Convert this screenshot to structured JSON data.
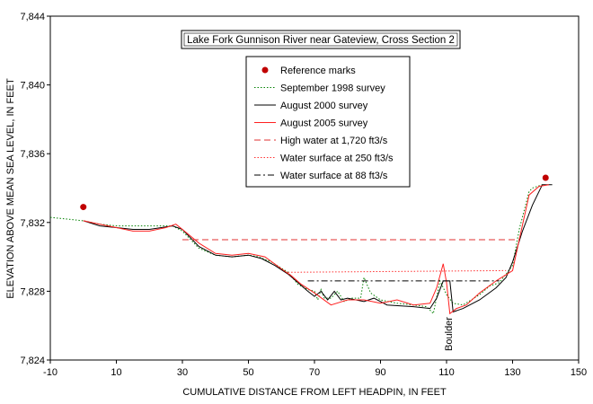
{
  "chart_data": {
    "type": "line",
    "title": "Lake Fork Gunnison River near Gateview, Cross Section 2",
    "xlabel": "CUMULATIVE DISTANCE FROM LEFT HEADPIN, IN FEET",
    "ylabel": "ELEVATION ABOVE MEAN SEA LEVEL, IN FEET",
    "xlim": [
      -10,
      150
    ],
    "ylim": [
      7824,
      7844
    ],
    "x_ticks": [
      -10,
      10,
      30,
      50,
      70,
      90,
      110,
      130,
      150
    ],
    "y_ticks": [
      7824,
      7828,
      7832,
      7836,
      7840,
      7844
    ],
    "y_tick_labels": [
      "7,824",
      "7,828",
      "7,832",
      "7,836",
      "7,840",
      "7,844"
    ],
    "legend_position": "inside-top-center",
    "annotation": "Boulder",
    "series": [
      {
        "name": "Reference marks",
        "kind": "marker",
        "color": "#c00000",
        "points": [
          [
            0,
            7832.9
          ],
          [
            140,
            7834.6
          ]
        ]
      },
      {
        "name": "September 1998 survey",
        "kind": "line",
        "style": "dotted",
        "color": "#008000",
        "points": [
          [
            -10,
            7832.3
          ],
          [
            0,
            7832.1
          ],
          [
            5,
            7831.9
          ],
          [
            10,
            7831.8
          ],
          [
            27,
            7831.8
          ],
          [
            30,
            7831.5
          ],
          [
            35,
            7830.5
          ],
          [
            40,
            7830.1
          ],
          [
            45,
            7830.0
          ],
          [
            50,
            7830.1
          ],
          [
            53,
            7830.0
          ],
          [
            57,
            7829.7
          ],
          [
            62,
            7829.1
          ],
          [
            65,
            7828.4
          ],
          [
            68,
            7828.1
          ],
          [
            70,
            7828.0
          ],
          [
            71,
            7827.5
          ],
          [
            72,
            7828.1
          ],
          [
            73,
            7827.6
          ],
          [
            75,
            7827.6
          ],
          [
            77,
            7828.0
          ],
          [
            79,
            7827.4
          ],
          [
            81,
            7827.6
          ],
          [
            84,
            7827.6
          ],
          [
            85,
            7828.8
          ],
          [
            87,
            7827.9
          ],
          [
            90,
            7827.5
          ],
          [
            95,
            7827.3
          ],
          [
            100,
            7827.2
          ],
          [
            104,
            7827.1
          ],
          [
            106,
            7826.7
          ],
          [
            108,
            7828.6
          ],
          [
            110,
            7827.8
          ],
          [
            112,
            7827.3
          ],
          [
            115,
            7827.2
          ],
          [
            120,
            7827.8
          ],
          [
            123,
            7828.3
          ],
          [
            126,
            7828.5
          ],
          [
            128,
            7829.0
          ],
          [
            130,
            7829.5
          ],
          [
            132,
            7831.6
          ],
          [
            135,
            7833.8
          ],
          [
            136,
            7834.0
          ],
          [
            139,
            7834.2
          ]
        ]
      },
      {
        "name": "August 2000 survey",
        "kind": "line",
        "style": "solid",
        "color": "#000000",
        "points": [
          [
            0,
            7832.1
          ],
          [
            5,
            7831.8
          ],
          [
            10,
            7831.7
          ],
          [
            15,
            7831.6
          ],
          [
            20,
            7831.6
          ],
          [
            27,
            7831.8
          ],
          [
            30,
            7831.6
          ],
          [
            35,
            7830.6
          ],
          [
            40,
            7830.1
          ],
          [
            45,
            7830.0
          ],
          [
            50,
            7830.1
          ],
          [
            54,
            7829.9
          ],
          [
            58,
            7829.5
          ],
          [
            62,
            7829.0
          ],
          [
            65,
            7828.5
          ],
          [
            68,
            7828.0
          ],
          [
            70,
            7827.7
          ],
          [
            72,
            7828.0
          ],
          [
            74,
            7827.5
          ],
          [
            76,
            7828.0
          ],
          [
            78,
            7827.5
          ],
          [
            80,
            7827.6
          ],
          [
            85,
            7827.4
          ],
          [
            88,
            7827.6
          ],
          [
            92,
            7827.2
          ],
          [
            100,
            7827.1
          ],
          [
            105,
            7827.0
          ],
          [
            107,
            7827.6
          ],
          [
            109,
            7828.6
          ],
          [
            111,
            7828.6
          ],
          [
            112,
            7826.8
          ],
          [
            115,
            7827.0
          ],
          [
            120,
            7827.5
          ],
          [
            125,
            7828.2
          ],
          [
            128,
            7828.8
          ],
          [
            130,
            7829.7
          ],
          [
            133,
            7831.5
          ],
          [
            136,
            7833.0
          ],
          [
            139,
            7834.2
          ],
          [
            142,
            7834.2
          ]
        ]
      },
      {
        "name": "August 2005 survey",
        "kind": "line",
        "style": "solid",
        "color": "#ff2020",
        "points": [
          [
            0,
            7832.1
          ],
          [
            5,
            7831.9
          ],
          [
            10,
            7831.7
          ],
          [
            15,
            7831.5
          ],
          [
            20,
            7831.5
          ],
          [
            25,
            7831.7
          ],
          [
            28,
            7831.9
          ],
          [
            30,
            7831.6
          ],
          [
            35,
            7830.8
          ],
          [
            40,
            7830.2
          ],
          [
            45,
            7830.1
          ],
          [
            50,
            7830.2
          ],
          [
            55,
            7830.0
          ],
          [
            60,
            7829.3
          ],
          [
            63,
            7828.9
          ],
          [
            66,
            7828.4
          ],
          [
            70,
            7827.9
          ],
          [
            75,
            7827.2
          ],
          [
            80,
            7827.5
          ],
          [
            85,
            7827.5
          ],
          [
            90,
            7827.3
          ],
          [
            95,
            7827.5
          ],
          [
            100,
            7827.2
          ],
          [
            105,
            7827.3
          ],
          [
            107,
            7828.2
          ],
          [
            109,
            7829.6
          ],
          [
            110,
            7828.5
          ],
          [
            111,
            7826.7
          ],
          [
            113,
            7827.0
          ],
          [
            116,
            7827.2
          ],
          [
            120,
            7827.9
          ],
          [
            125,
            7828.6
          ],
          [
            130,
            7829.2
          ],
          [
            132,
            7831.0
          ],
          [
            135,
            7833.6
          ],
          [
            138,
            7834.1
          ],
          [
            141,
            7834.2
          ]
        ]
      },
      {
        "name": "High water at 1,720 ft3/s",
        "kind": "line",
        "style": "dashed",
        "color": "#e03030",
        "points": [
          [
            30,
            7831.0
          ],
          [
            132,
            7831.0
          ]
        ]
      },
      {
        "name": "Water surface at 250 ft3/s",
        "kind": "line",
        "style": "dotted",
        "color": "#ff3030",
        "points": [
          [
            62,
            7829.1
          ],
          [
            128,
            7829.2
          ]
        ]
      },
      {
        "name": "Water surface at 88 ft3/s",
        "kind": "line",
        "style": "dashdot",
        "color": "#000000",
        "points": [
          [
            68,
            7828.6
          ],
          [
            126,
            7828.6
          ]
        ]
      }
    ]
  }
}
